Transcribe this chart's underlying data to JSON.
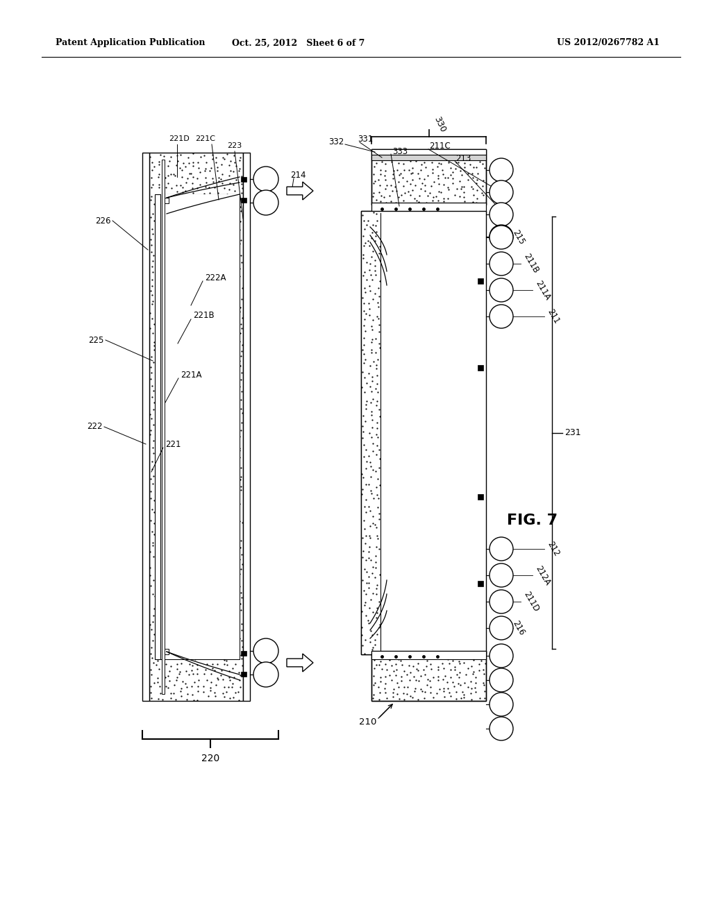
{
  "title_left": "Patent Application Publication",
  "title_center": "Oct. 25, 2012   Sheet 6 of 7",
  "title_right": "US 2012/0267782 A1",
  "fig_label": "FIG. 7",
  "bg": "#ffffff"
}
